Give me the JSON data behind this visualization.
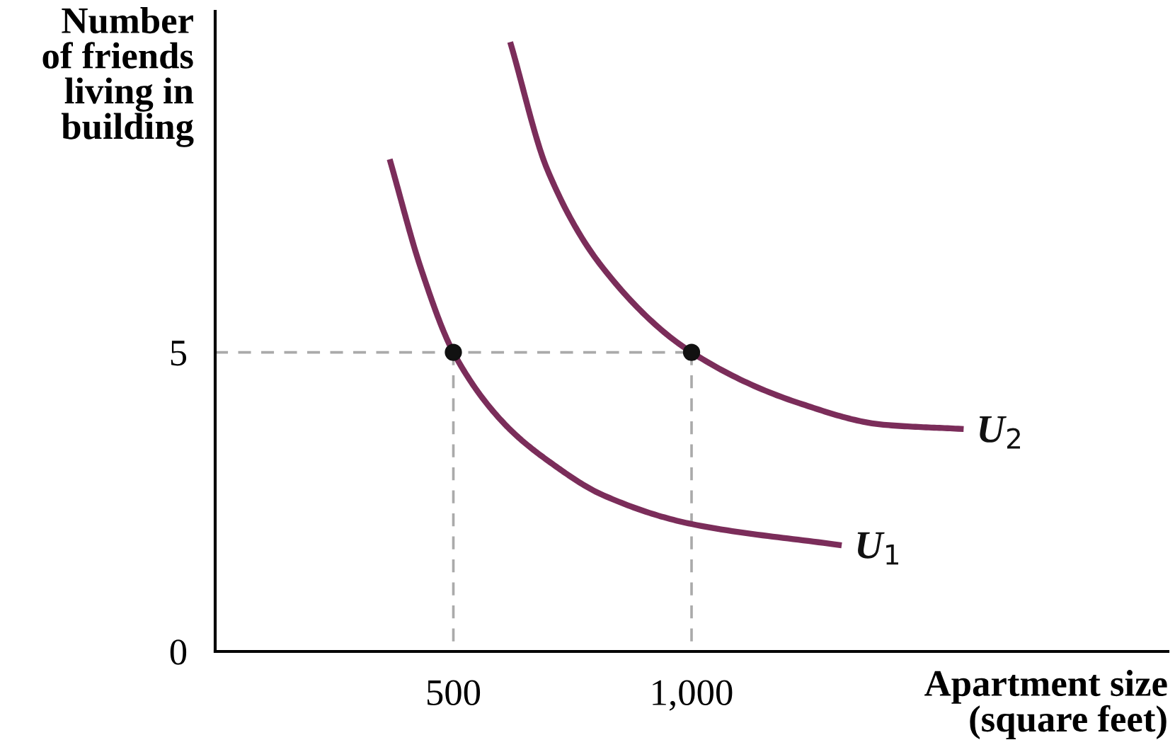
{
  "chart_data": {
    "type": "line",
    "xlabel": "Apartment size\n(square feet)",
    "ylabel": "Number\nof friends\nliving in\nbuilding",
    "xlim": [
      0,
      2000
    ],
    "ylim": [
      0,
      10.7
    ],
    "xticks": [
      500,
      {
        "value": 1000,
        "label": "1,000"
      }
    ],
    "yticks": [
      0,
      5
    ],
    "grid": false,
    "legend": false,
    "series": [
      {
        "color": "#aaaaaa",
        "line_style": "dashed",
        "x": [
          0,
          1000,
          null,
          500,
          500,
          null,
          1000,
          1000
        ],
        "values": [
          5,
          5,
          null,
          5,
          0,
          null,
          5,
          0
        ]
      },
      {
        "name": "U$_{1}$",
        "color": "#7b2d5a",
        "x": [
          368,
          432,
          500,
          609,
          700,
          815,
          1000,
          1309
        ],
        "values": [
          8.18,
          6.4,
          5,
          3.79,
          3.18,
          2.61,
          2.13,
          1.78
        ]
      },
      {
        "name": "U$_{2}$",
        "color": "#7b2d5a",
        "x": [
          621,
          697,
          815,
          1000,
          1226,
          1403,
          1565
        ],
        "values": [
          10.14,
          8.06,
          6.4,
          5,
          4.15,
          3.79,
          3.72
        ]
      },
      {
        "type": "scatter",
        "color": "#111111",
        "marker": "circle",
        "x": [
          500,
          1000
        ],
        "values": [
          5,
          5
        ]
      }
    ]
  }
}
